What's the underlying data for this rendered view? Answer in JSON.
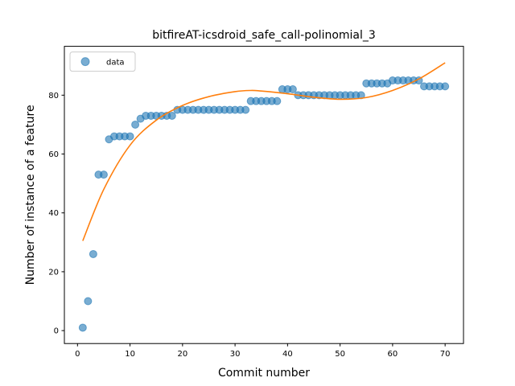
{
  "chart_data": {
    "type": "scatter",
    "title": "bitfireAT-icsdroid_safe_call-polinomial_3",
    "xlabel": "Commit number",
    "ylabel": "Number of instance of a feature",
    "xlim": [
      -2.5,
      73.5
    ],
    "ylim": [
      -4.4,
      96.6
    ],
    "xticks": [
      0,
      10,
      20,
      30,
      40,
      50,
      60,
      70
    ],
    "yticks": [
      0,
      20,
      40,
      60,
      80
    ],
    "grid": false,
    "legend": {
      "position": "top-left",
      "entries": [
        "data"
      ]
    },
    "colors": {
      "data": "#1f77b4",
      "fit": "#ff7f0e"
    },
    "series": [
      {
        "name": "data",
        "kind": "scatter",
        "x": [
          1,
          2,
          3,
          4,
          5,
          6,
          7,
          8,
          9,
          10,
          11,
          12,
          13,
          14,
          15,
          16,
          17,
          18,
          19,
          20,
          21,
          22,
          23,
          24,
          25,
          26,
          27,
          28,
          29,
          30,
          31,
          32,
          33,
          34,
          35,
          36,
          37,
          38,
          39,
          40,
          41,
          42,
          43,
          44,
          45,
          46,
          47,
          48,
          49,
          50,
          51,
          52,
          53,
          54,
          55,
          56,
          57,
          58,
          59,
          60,
          61,
          62,
          63,
          64,
          65,
          66,
          67,
          68,
          69,
          70
        ],
        "y": [
          1,
          10,
          26,
          53,
          53,
          65,
          66,
          66,
          66,
          66,
          70,
          72,
          73,
          73,
          73,
          73,
          73,
          73,
          75,
          75,
          75,
          75,
          75,
          75,
          75,
          75,
          75,
          75,
          75,
          75,
          75,
          75,
          78,
          78,
          78,
          78,
          78,
          78,
          82,
          82,
          82,
          80,
          80,
          80,
          80,
          80,
          80,
          80,
          80,
          80,
          80,
          80,
          80,
          80,
          84,
          84,
          84,
          84,
          84,
          85,
          85,
          85,
          85,
          85,
          85,
          83,
          83,
          83,
          83,
          83
        ]
      },
      {
        "kind": "line",
        "x": [
          1,
          5,
          10,
          15,
          20,
          25,
          30,
          33,
          35,
          40,
          45,
          50,
          55,
          60,
          65,
          70
        ],
        "y": [
          30.5,
          48.0,
          63.0,
          71.5,
          76.5,
          79.5,
          81.2,
          81.6,
          81.4,
          80.5,
          79.3,
          78.6,
          79.2,
          81.6,
          85.5,
          91.0
        ]
      }
    ]
  }
}
